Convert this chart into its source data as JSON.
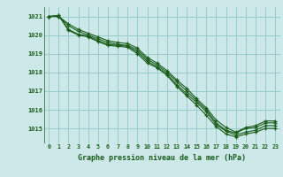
{
  "title": "Graphe pression niveau de la mer (hPa)",
  "bg_color": "#cce8e8",
  "grid_color": "#99cccc",
  "line_color": "#1a5c1a",
  "xlim": [
    -0.5,
    23.5
  ],
  "ylim": [
    1014.2,
    1021.5
  ],
  "yticks": [
    1015,
    1016,
    1017,
    1018,
    1019,
    1020,
    1021
  ],
  "xticks": [
    0,
    1,
    2,
    3,
    4,
    5,
    6,
    7,
    8,
    9,
    10,
    11,
    12,
    13,
    14,
    15,
    16,
    17,
    18,
    19,
    20,
    21,
    22,
    23
  ],
  "series": [
    [
      1021.0,
      1021.0,
      1020.5,
      1020.2,
      1020.0,
      1019.8,
      1019.6,
      1019.5,
      1019.45,
      1019.2,
      1018.7,
      1018.4,
      1018.0,
      1017.5,
      1017.0,
      1016.5,
      1016.0,
      1015.3,
      1014.9,
      1014.75,
      1015.0,
      1015.05,
      1015.3,
      1015.3
    ],
    [
      1021.0,
      1021.0,
      1020.6,
      1020.3,
      1020.1,
      1019.9,
      1019.7,
      1019.6,
      1019.55,
      1019.3,
      1018.8,
      1018.5,
      1018.1,
      1017.6,
      1017.15,
      1016.6,
      1016.1,
      1015.45,
      1015.05,
      1014.8,
      1015.05,
      1015.15,
      1015.4,
      1015.4
    ],
    [
      1021.0,
      1021.05,
      1020.3,
      1020.05,
      1019.95,
      1019.7,
      1019.5,
      1019.45,
      1019.4,
      1019.1,
      1018.6,
      1018.3,
      1017.9,
      1017.35,
      1016.85,
      1016.4,
      1015.9,
      1015.2,
      1014.85,
      1014.65,
      1014.8,
      1014.9,
      1015.15,
      1015.15
    ],
    [
      1021.0,
      1021.05,
      1020.25,
      1020.0,
      1019.9,
      1019.65,
      1019.45,
      1019.4,
      1019.35,
      1019.0,
      1018.5,
      1018.25,
      1017.85,
      1017.25,
      1016.75,
      1016.25,
      1015.7,
      1015.1,
      1014.7,
      1014.55,
      1014.7,
      1014.8,
      1015.0,
      1015.0
    ]
  ],
  "figsize": [
    3.2,
    2.0
  ],
  "dpi": 100
}
